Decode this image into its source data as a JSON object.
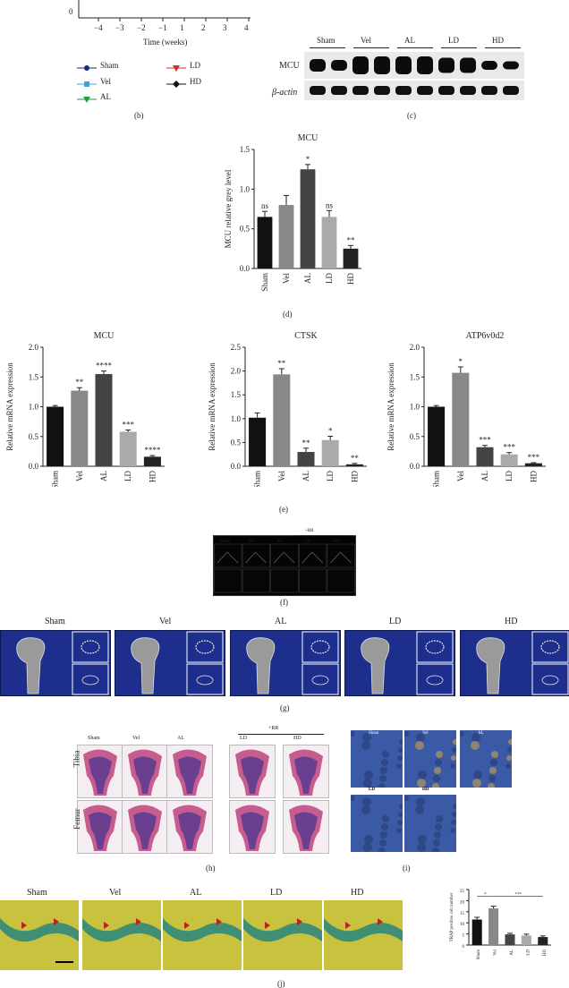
{
  "top_chart": {
    "xlabel": "Time (weeks)",
    "xticks": [
      "−4",
      "−3",
      "−2",
      "−1",
      "1",
      "2",
      "3",
      "4"
    ],
    "y_tick_visible": "0",
    "legend": [
      {
        "label": "Sham",
        "color": "#1a2a7a",
        "marker": "circle"
      },
      {
        "label": "Vel",
        "color": "#3ea3d9",
        "marker": "square"
      },
      {
        "label": "AL",
        "color": "#2e9a3a",
        "marker": "triangle-down"
      },
      {
        "label": "LD",
        "color": "#d42a2a",
        "marker": "triangle-down"
      },
      {
        "label": "HD",
        "color": "#111111",
        "marker": "diamond"
      }
    ],
    "panel_label": "(b)"
  },
  "western_blot": {
    "groups": [
      "Sham",
      "Vel",
      "AL",
      "LD",
      "HD"
    ],
    "rows": [
      "MCU",
      "β-actin"
    ],
    "panel_label": "(c)"
  },
  "chart_data": [
    {
      "type": "bar",
      "title": "MCU",
      "ylabel": "MCU relative grey level",
      "categories": [
        "Sham",
        "Vel",
        "AL",
        "LD",
        "HD"
      ],
      "values": [
        0.65,
        0.8,
        1.25,
        0.65,
        0.25
      ],
      "errors": [
        0.07,
        0.12,
        0.06,
        0.08,
        0.04
      ],
      "annotations": [
        "ns",
        "",
        "*",
        "ns",
        "**"
      ],
      "colors": [
        "#111111",
        "#888888",
        "#444444",
        "#aaaaaa",
        "#222222"
      ],
      "ylim": [
        0,
        1.5
      ],
      "yticks": [
        "0.0",
        "0.5",
        "1.0",
        "1.5"
      ],
      "panel_label": "(d)"
    },
    {
      "type": "bar",
      "title": "MCU",
      "ylabel": "Relative mRNA expression",
      "categories": [
        "Sham",
        "Vel",
        "AL",
        "LD",
        "HD"
      ],
      "values": [
        1.0,
        1.27,
        1.55,
        0.58,
        0.16
      ],
      "errors": [
        0.02,
        0.05,
        0.05,
        0.03,
        0.02
      ],
      "annotations": [
        "",
        "**",
        "****",
        "***",
        "****"
      ],
      "colors": [
        "#111111",
        "#888888",
        "#444444",
        "#aaaaaa",
        "#222222"
      ],
      "ylim": [
        0,
        2.0
      ],
      "yticks": [
        "0.0",
        "0.5",
        "1.0",
        "1.5",
        "2.0"
      ]
    },
    {
      "type": "bar",
      "title": "CTSK",
      "ylabel": "Relative mRNA expression",
      "categories": [
        "Sham",
        "Vel",
        "AL",
        "LD",
        "HD"
      ],
      "values": [
        1.02,
        1.93,
        0.3,
        0.55,
        0.04
      ],
      "errors": [
        0.1,
        0.12,
        0.08,
        0.08,
        0.02
      ],
      "annotations": [
        "",
        "**",
        "**",
        "*",
        "**"
      ],
      "colors": [
        "#111111",
        "#888888",
        "#444444",
        "#aaaaaa",
        "#222222"
      ],
      "ylim": [
        0,
        2.5
      ],
      "yticks": [
        "0.0",
        "0.5",
        "1.0",
        "1.5",
        "2.0",
        "2.5"
      ]
    },
    {
      "type": "bar",
      "title": "ATP6v0d2",
      "ylabel": "Relative mRNA expression",
      "categories": [
        "Sham",
        "Vel",
        "AL",
        "LD",
        "HD"
      ],
      "values": [
        1.0,
        1.57,
        0.32,
        0.2,
        0.05
      ],
      "errors": [
        0.02,
        0.1,
        0.03,
        0.03,
        0.01
      ],
      "annotations": [
        "",
        "*",
        "***",
        "***",
        "***"
      ],
      "colors": [
        "#111111",
        "#888888",
        "#444444",
        "#aaaaaa",
        "#222222"
      ],
      "ylim": [
        0,
        2.0
      ],
      "yticks": [
        "0.0",
        "0.5",
        "1.0",
        "1.5",
        "2.0"
      ]
    },
    {
      "type": "bar",
      "title": "",
      "ylabel": "TRAP positive cell number",
      "categories": [
        "Sham",
        "Vel",
        "AL",
        "LD",
        "HD"
      ],
      "values": [
        11.5,
        16.5,
        4.8,
        4.3,
        3.6
      ],
      "errors": [
        1.0,
        1.0,
        0.5,
        0.6,
        0.5
      ],
      "annotations": [],
      "brackets": [
        "*",
        "***"
      ],
      "colors": [
        "#111111",
        "#888888",
        "#444444",
        "#aaaaaa",
        "#222222"
      ],
      "ylim": [
        0,
        25
      ],
      "yticks": [
        "0",
        "5",
        "10",
        "15",
        "20",
        "25"
      ]
    }
  ],
  "panel_labels": {
    "d": "(d)",
    "e": "(e)",
    "f": "(f)",
    "g": "(g)",
    "h": "(h)",
    "i": "(i)",
    "j": "(j)"
  },
  "fluor": {
    "labels": [
      "Sham",
      "Vel",
      "AL",
      "LD",
      "HD"
    ],
    "rr": "+RR"
  },
  "microct": {
    "labels": [
      "Sham",
      "Vel",
      "AL",
      "LD",
      "HD"
    ]
  },
  "histology": {
    "labels": [
      "Sham",
      "Vel",
      "AL",
      "LD",
      "HD"
    ],
    "rr": "+RR",
    "rows": [
      "Tibia",
      "Femur"
    ]
  },
  "ihc": {
    "labels": [
      "Sham",
      "Vel",
      "AL",
      "LD",
      "HD"
    ]
  },
  "trap": {
    "labels": [
      "Sham",
      "Vel",
      "AL",
      "LD",
      "HD"
    ]
  }
}
